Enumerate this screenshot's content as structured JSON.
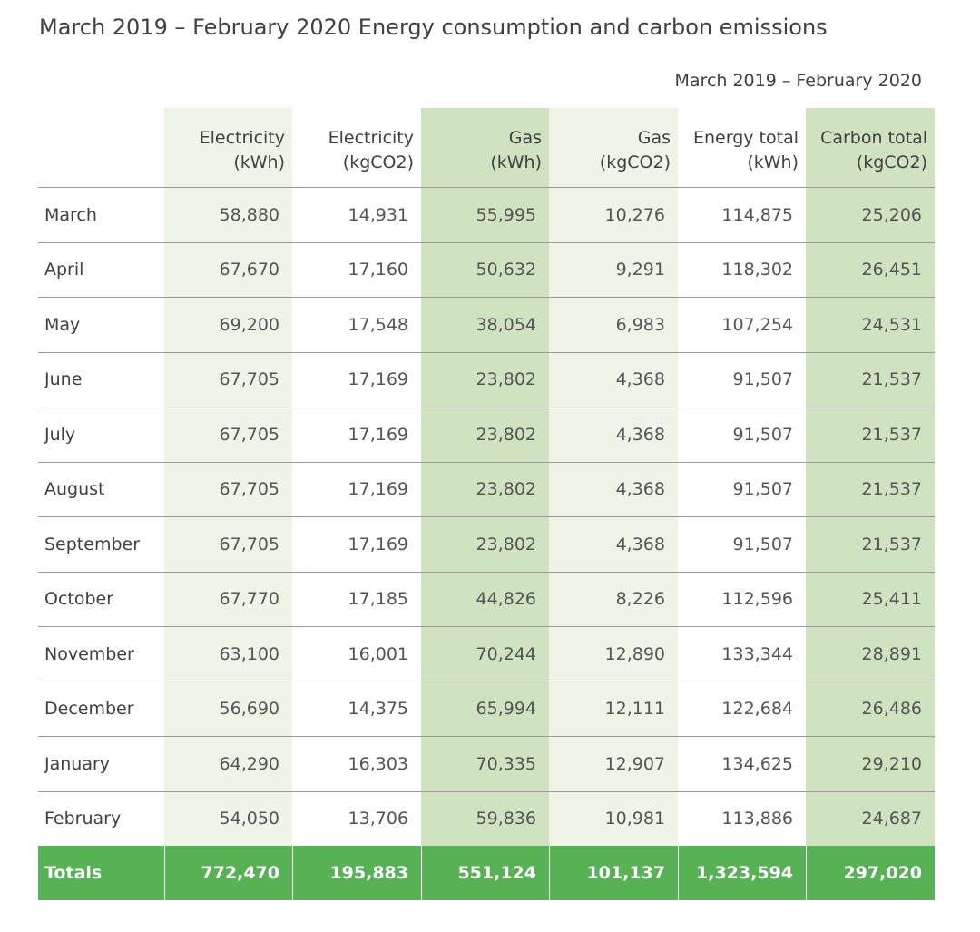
{
  "title": "March 2019 – February 2020 Energy consumption and carbon emissions",
  "period_label": "March 2019 – February 2020",
  "chart_data": {
    "type": "table",
    "columns": [
      {
        "line1": "Electricity",
        "line2": "(kWh)"
      },
      {
        "line1": "Electricity",
        "line2": "(kgCO2)"
      },
      {
        "line1": "Gas",
        "line2": "(kWh)"
      },
      {
        "line1": "Gas",
        "line2": "(kgCO2)"
      },
      {
        "line1": "Energy total",
        "line2": "(kWh)"
      },
      {
        "line1": "Carbon total",
        "line2": "(kgCO2)"
      }
    ],
    "rows": [
      {
        "month": "March",
        "values": [
          "58,880",
          "14,931",
          "55,995",
          "10,276",
          "114,875",
          "25,206"
        ]
      },
      {
        "month": "April",
        "values": [
          "67,670",
          "17,160",
          "50,632",
          "9,291",
          "118,302",
          "26,451"
        ]
      },
      {
        "month": "May",
        "values": [
          "69,200",
          "17,548",
          "38,054",
          "6,983",
          "107,254",
          "24,531"
        ]
      },
      {
        "month": "June",
        "values": [
          "67,705",
          "17,169",
          "23,802",
          "4,368",
          "91,507",
          "21,537"
        ]
      },
      {
        "month": "July",
        "values": [
          "67,705",
          "17,169",
          "23,802",
          "4,368",
          "91,507",
          "21,537"
        ]
      },
      {
        "month": "August",
        "values": [
          "67,705",
          "17,169",
          "23,802",
          "4,368",
          "91,507",
          "21,537"
        ]
      },
      {
        "month": "September",
        "values": [
          "67,705",
          "17,169",
          "23,802",
          "4,368",
          "91,507",
          "21,537"
        ]
      },
      {
        "month": "October",
        "values": [
          "67,770",
          "17,185",
          "44,826",
          "8,226",
          "112,596",
          "25,411"
        ]
      },
      {
        "month": "November",
        "values": [
          "63,100",
          "16,001",
          "70,244",
          "12,890",
          "133,344",
          "28,891"
        ]
      },
      {
        "month": "December",
        "values": [
          "56,690",
          "14,375",
          "65,994",
          "12,111",
          "122,684",
          "26,486"
        ]
      },
      {
        "month": "January",
        "values": [
          "64,290",
          "16,303",
          "70,335",
          "12,907",
          "134,625",
          "29,210"
        ]
      },
      {
        "month": "February",
        "values": [
          "54,050",
          "13,706",
          "59,836",
          "10,981",
          "113,886",
          "24,687"
        ]
      }
    ],
    "totals": {
      "label": "Totals",
      "values": [
        "772,470",
        "195,883",
        "551,124",
        "101,137",
        "1,323,594",
        "297,020"
      ]
    }
  },
  "colors": {
    "column_light": "#eef5e7",
    "column_dark": "#cfe3c0",
    "totals_row": "#57b155"
  }
}
